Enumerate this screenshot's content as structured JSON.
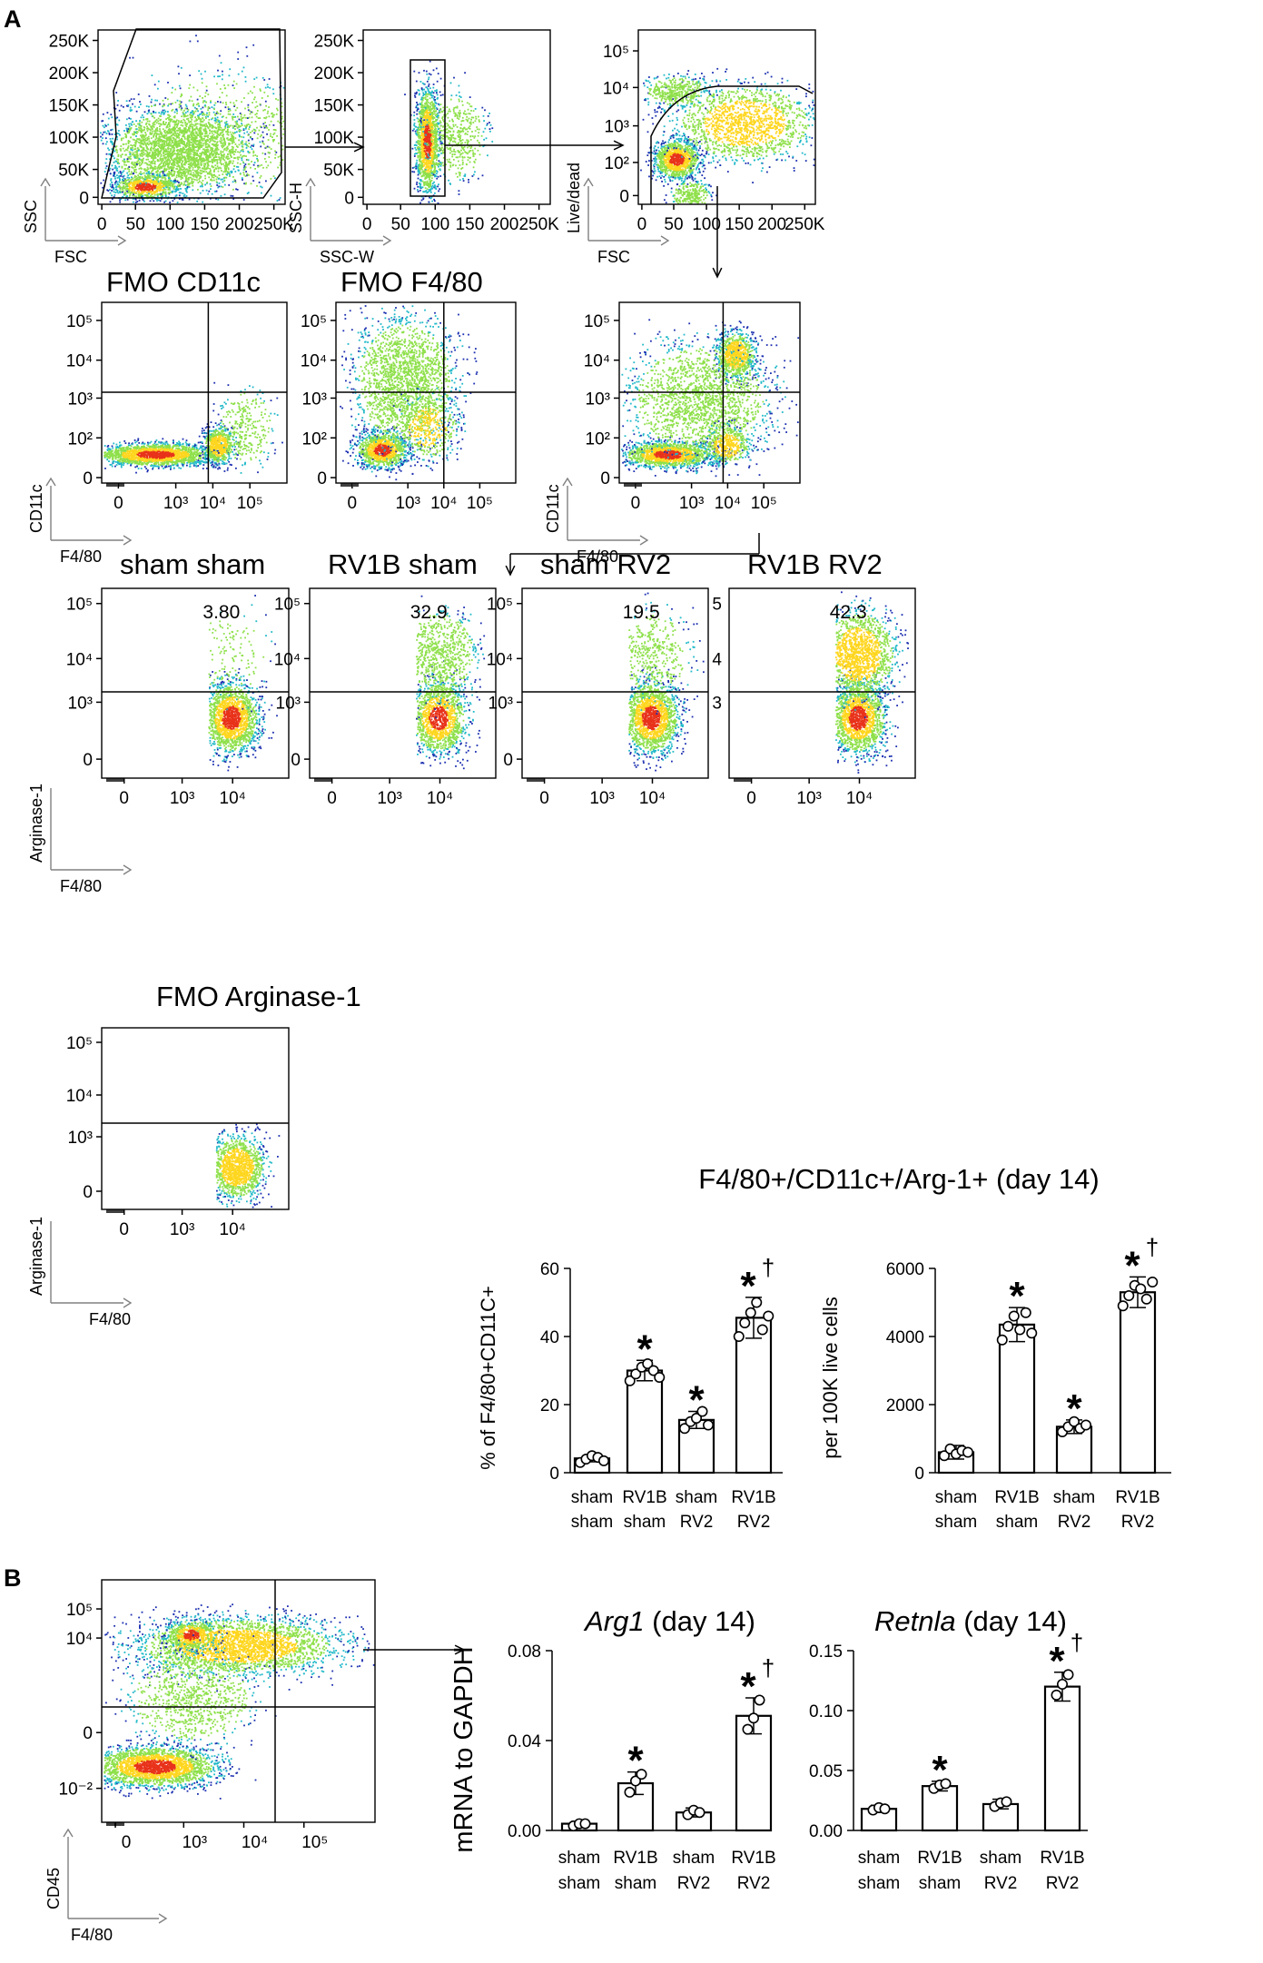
{
  "panel_labels": {
    "a": "A",
    "b": "B"
  },
  "colors": {
    "dot_low": "#1b2fb0",
    "dot_mid": "#21b9c9",
    "dot_hi": "#8ee04a",
    "dot_peak": "#ffd61f",
    "dot_core": "#e8321a"
  },
  "gating": {
    "plot1": {
      "xlabel": "FSC",
      "ylabel": "SSC",
      "xticks": [
        "0",
        "50",
        "100",
        "150",
        "200",
        "250K"
      ],
      "yticks": [
        "0",
        "50K",
        "100K",
        "150K",
        "200K",
        "250K"
      ]
    },
    "plot2": {
      "xlabel": "SSC-W",
      "ylabel": "SSC-H",
      "xticks": [
        "0",
        "50",
        "100",
        "150",
        "200",
        "250K"
      ],
      "yticks": [
        "0",
        "50K",
        "100K",
        "150K",
        "200K",
        "250K"
      ]
    },
    "plot3": {
      "xlabel": "FSC",
      "ylabel": "Live/dead",
      "xticks": [
        "0",
        "50",
        "100",
        "150",
        "200",
        "250K"
      ],
      "yticks": [
        "0",
        "10²",
        "10³",
        "10⁴",
        "10⁵"
      ]
    }
  },
  "fmo": {
    "titles": [
      "FMO CD11c",
      "FMO F4/80"
    ],
    "xlabel": "F4/80",
    "ylabel": "CD11c",
    "xticks": [
      "0",
      "10³",
      "10⁴",
      "10⁵"
    ],
    "yticks": [
      "0",
      "10²",
      "10³",
      "10⁴",
      "10⁵"
    ]
  },
  "arg_plots": {
    "xlabel": "F4/80",
    "ylabel": "Arginase-1",
    "xticks": [
      "0",
      "10³",
      "10⁴"
    ],
    "yticks": [
      "0",
      "10³",
      "10⁴",
      "10⁵"
    ],
    "yticks_alt": [
      "3",
      "4",
      "5"
    ],
    "groups": [
      {
        "title": "sham sham",
        "percent": "3.80"
      },
      {
        "title": "RV1B sham",
        "percent": "32.9"
      },
      {
        "title": "sham RV2",
        "percent": "19.5"
      },
      {
        "title": "RV1B RV2",
        "percent": "42.3"
      }
    ],
    "fmo_title": "FMO Arginase-1"
  },
  "summary_title": "F4/80+/CD11c+/Arg-1+ (day 14)",
  "sig": {
    "star": "*",
    "dagger": "†"
  },
  "group_labels": [
    [
      "sham",
      "sham"
    ],
    [
      "RV1B",
      "sham"
    ],
    [
      "sham",
      "RV2"
    ],
    [
      "RV1B",
      "RV2"
    ]
  ],
  "panel_b_flow": {
    "xlabel": "F4/80",
    "ylabel": "CD45",
    "xticks": [
      "0",
      "10³",
      "10⁴",
      "10⁵"
    ],
    "yticks": [
      "10⁻²",
      "0",
      "10⁴",
      "10⁵"
    ]
  },
  "shared_ylabel": "mRNA to GAPDH",
  "chart_data": [
    {
      "type": "bar",
      "title": "F4/80+/CD11c+/Arg-1+ (day 14)",
      "ylabel": "% of F4/80+CD11C+",
      "categories": [
        "sham sham",
        "RV1B sham",
        "sham RV2",
        "RV1B RV2"
      ],
      "values": [
        4.2,
        30,
        15.5,
        45.5
      ],
      "errors": [
        1,
        3,
        2.5,
        6
      ],
      "points": [
        [
          3,
          4,
          5,
          4.5,
          3.5
        ],
        [
          27,
          29,
          31,
          32,
          30,
          28
        ],
        [
          13,
          15,
          16,
          18,
          14
        ],
        [
          40,
          44,
          47,
          50,
          42,
          46
        ]
      ],
      "ylim": [
        0,
        60
      ],
      "yticks": [
        0,
        20,
        40,
        60
      ],
      "significance": [
        "",
        "*",
        "*",
        "*†"
      ]
    },
    {
      "type": "bar",
      "title": "F4/80+/CD11c+/Arg-1+ (day 14)",
      "ylabel": "per 100K live cells",
      "categories": [
        "sham sham",
        "RV1B sham",
        "sham RV2",
        "RV1B RV2"
      ],
      "values": [
        600,
        4350,
        1350,
        5300
      ],
      "errors": [
        200,
        500,
        200,
        450
      ],
      "points": [
        [
          500,
          700,
          550,
          650,
          600
        ],
        [
          3900,
          4300,
          4600,
          4200,
          4700,
          4100
        ],
        [
          1200,
          1350,
          1500,
          1300,
          1400
        ],
        [
          4900,
          5200,
          5500,
          5400,
          5100,
          5600
        ]
      ],
      "ylim": [
        0,
        6000
      ],
      "yticks": [
        0,
        2000,
        4000,
        6000
      ],
      "significance": [
        "",
        "*",
        "*",
        "*†"
      ]
    },
    {
      "type": "bar",
      "title": "Arg1 (day 14)",
      "title_italic": "Arg1",
      "title_suffix": " (day 14)",
      "ylabel": "mRNA to GAPDH",
      "categories": [
        "sham sham",
        "RV1B sham",
        "sham RV2",
        "RV1B RV2"
      ],
      "values": [
        0.003,
        0.021,
        0.008,
        0.051
      ],
      "errors": [
        0.001,
        0.005,
        0.002,
        0.008
      ],
      "points": [
        [
          0.002,
          0.003,
          0.003
        ],
        [
          0.017,
          0.022,
          0.025
        ],
        [
          0.007,
          0.009,
          0.008
        ],
        [
          0.045,
          0.05,
          0.058
        ]
      ],
      "ylim": [
        0,
        0.08
      ],
      "yticks": [
        "0.00",
        "0.04",
        "0.08"
      ],
      "significance": [
        "",
        "*",
        "",
        "*†"
      ]
    },
    {
      "type": "bar",
      "title": "Retnla (day 14)",
      "title_italic": "Retnla",
      "title_suffix": " (day 14)",
      "ylabel": "mRNA to GAPDH",
      "categories": [
        "sham sham",
        "RV1B sham",
        "sham RV2",
        "RV1B RV2"
      ],
      "values": [
        0.018,
        0.037,
        0.022,
        0.12
      ],
      "errors": [
        0.003,
        0.004,
        0.004,
        0.012
      ],
      "points": [
        [
          0.017,
          0.019,
          0.018
        ],
        [
          0.035,
          0.038,
          0.039
        ],
        [
          0.02,
          0.023,
          0.024
        ],
        [
          0.113,
          0.122,
          0.13
        ]
      ],
      "ylim": [
        0,
        0.15
      ],
      "yticks": [
        "0.00",
        "0.05",
        "0.10",
        "0.15"
      ],
      "significance": [
        "",
        "*",
        "",
        "*†"
      ]
    }
  ]
}
